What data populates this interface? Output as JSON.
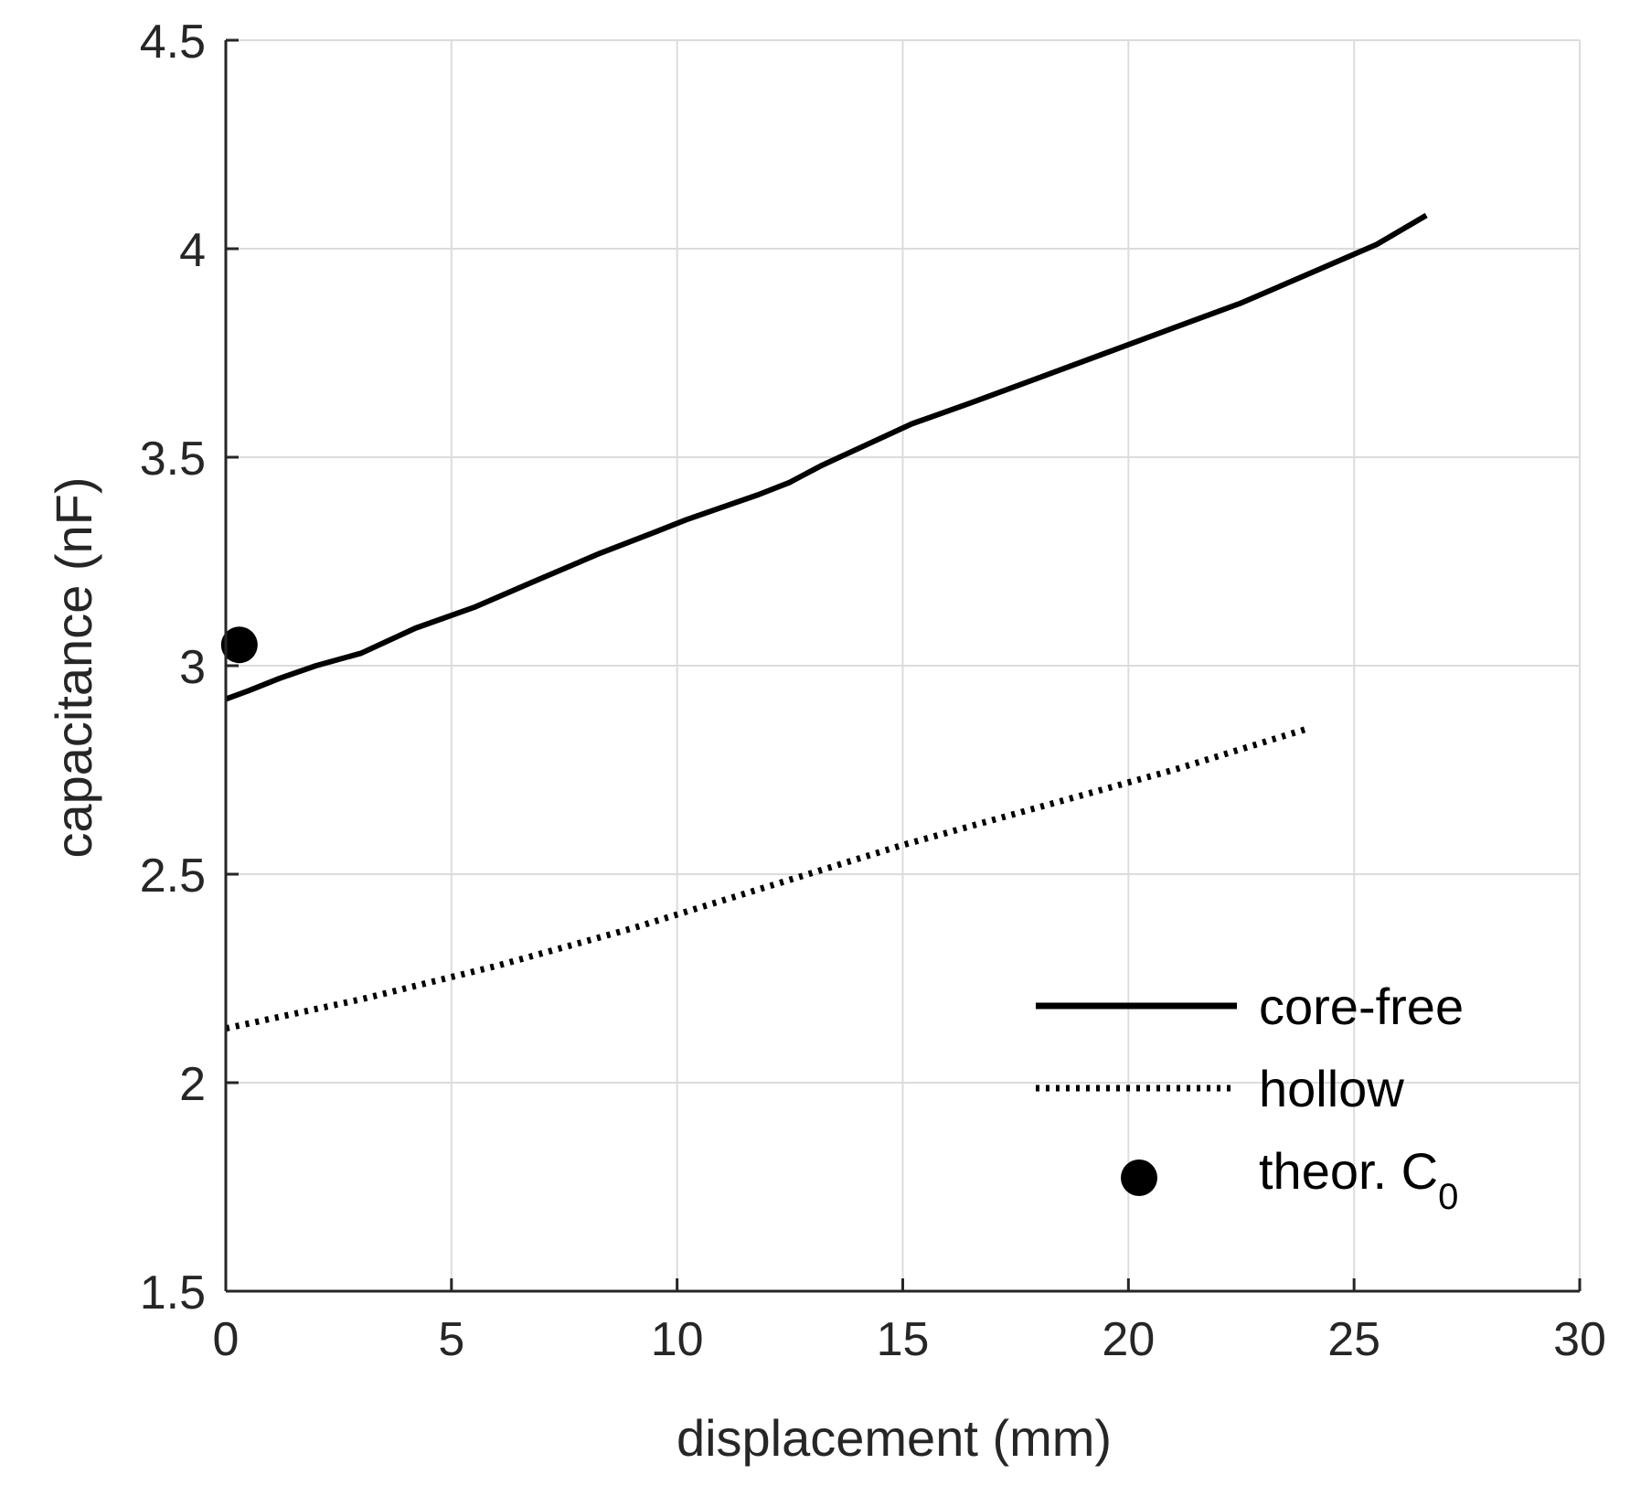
{
  "chart_data": {
    "type": "line",
    "xlabel": "displacement (mm)",
    "ylabel": "capacitance (nF)",
    "xlim": [
      0,
      30
    ],
    "ylim": [
      1.5,
      4.5
    ],
    "xticks": [
      0,
      5,
      10,
      15,
      20,
      25,
      30
    ],
    "yticks": [
      1.5,
      2,
      2.5,
      3,
      3.5,
      4,
      4.5
    ],
    "xtick_labels": [
      "0",
      "5",
      "10",
      "15",
      "20",
      "25",
      "30"
    ],
    "ytick_labels": [
      "1.5",
      "2",
      "2.5",
      "3",
      "3.5",
      "4",
      "4.5"
    ],
    "grid": true,
    "legend_position": "bottom-right",
    "series": [
      {
        "name": "core-free",
        "label": "core-free",
        "style": "solid",
        "x": [
          0,
          0.5,
          1.2,
          2,
          3,
          4.2,
          5.5,
          7,
          8.3,
          9.5,
          10.2,
          11,
          11.8,
          12.5,
          13.2,
          14.2,
          15.2,
          16.5,
          18,
          19.5,
          21,
          22.5,
          24,
          25.5,
          26.6
        ],
        "y": [
          2.92,
          2.94,
          2.97,
          3.0,
          3.03,
          3.09,
          3.14,
          3.21,
          3.27,
          3.32,
          3.35,
          3.38,
          3.41,
          3.44,
          3.48,
          3.53,
          3.58,
          3.63,
          3.69,
          3.75,
          3.81,
          3.87,
          3.94,
          4.01,
          4.08
        ]
      },
      {
        "name": "hollow",
        "label": "hollow",
        "style": "dotted",
        "x": [
          0,
          3,
          6,
          9,
          12,
          15,
          18,
          21,
          24
        ],
        "y": [
          2.13,
          2.2,
          2.28,
          2.37,
          2.47,
          2.57,
          2.66,
          2.75,
          2.85
        ]
      },
      {
        "name": "theor-c0",
        "label": "theor. C",
        "label_subscript": "0",
        "style": "marker",
        "x": [
          0.3
        ],
        "y": [
          3.05
        ]
      }
    ]
  }
}
